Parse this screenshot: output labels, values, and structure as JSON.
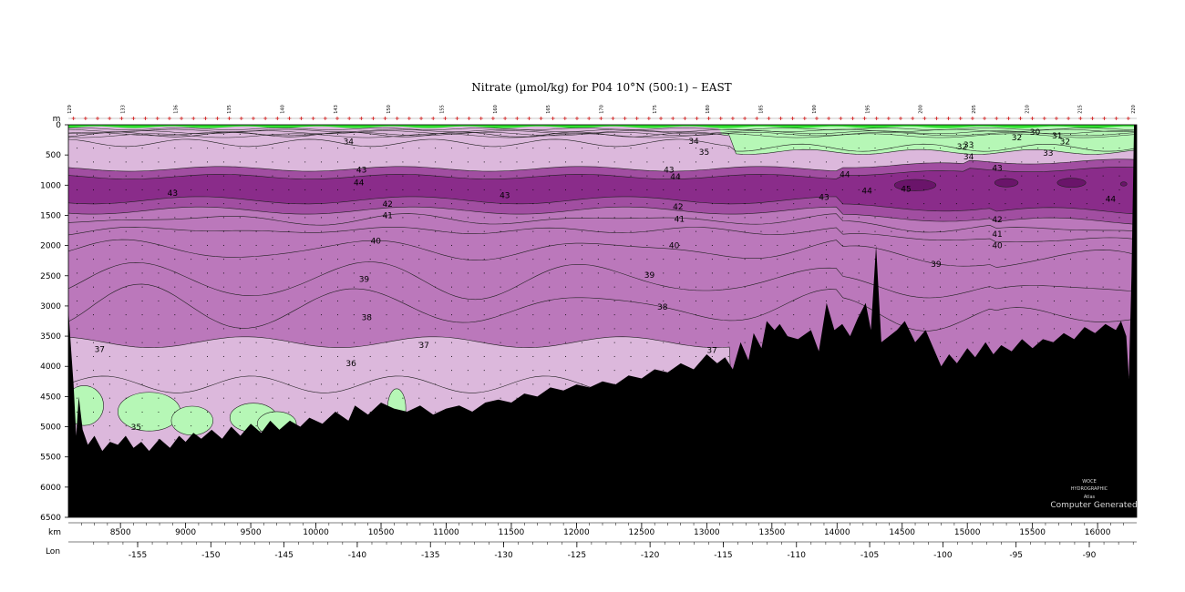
{
  "chart_data": {
    "type": "section_contour",
    "title": "Nitrate (µmol/kg) for P04 10°N (500:1) – EAST",
    "variable_unit": "µmol/kg",
    "y_unit_label": "m",
    "x_unit_label": "km",
    "secondary_x_label": "Lon",
    "y_axis": {
      "ylim": [
        0,
        6500
      ],
      "ticks": [
        0,
        500,
        1000,
        1500,
        2000,
        2500,
        3000,
        3500,
        4000,
        4500,
        5000,
        5500,
        6000,
        6500
      ],
      "reversed": true
    },
    "x_axis_km": {
      "xlim": [
        8100,
        16300
      ],
      "ticks": [
        8500,
        9000,
        9500,
        10000,
        10500,
        11000,
        11500,
        12000,
        12500,
        13000,
        13500,
        14000,
        14500,
        15000,
        15500,
        16000
      ]
    },
    "x_axis_lon": {
      "ticks": [
        -155,
        -150,
        -145,
        -140,
        -135,
        -130,
        -125,
        -120,
        -115,
        -110,
        -105,
        -100,
        -95,
        -90
      ]
    },
    "station_labels": [
      "129",
      "133",
      "136",
      "135",
      "140",
      "143",
      "150",
      "155",
      "160",
      "165",
      "170",
      "175",
      "180",
      "185",
      "190",
      "195",
      "200",
      "205",
      "210",
      "215",
      "220"
    ],
    "contour_levels": [
      30,
      31,
      32,
      33,
      34,
      35,
      36,
      37,
      38,
      39,
      40,
      41,
      42,
      43,
      44,
      45
    ],
    "contour_labels": [
      {
        "text": "34",
        "km": 10250,
        "depth": 280
      },
      {
        "text": "34",
        "km": 12900,
        "depth": 270
      },
      {
        "text": "35",
        "km": 12980,
        "depth": 450
      },
      {
        "text": "30",
        "km": 15520,
        "depth": 120
      },
      {
        "text": "31",
        "km": 15690,
        "depth": 180
      },
      {
        "text": "32",
        "km": 15380,
        "depth": 210
      },
      {
        "text": "32",
        "km": 15750,
        "depth": 280
      },
      {
        "text": "32",
        "km": 14960,
        "depth": 360
      },
      {
        "text": "33",
        "km": 15010,
        "depth": 330
      },
      {
        "text": "34",
        "km": 15010,
        "depth": 530
      },
      {
        "text": "33",
        "km": 15620,
        "depth": 470
      },
      {
        "text": "43",
        "km": 10350,
        "depth": 750
      },
      {
        "text": "43",
        "km": 12710,
        "depth": 750
      },
      {
        "text": "43",
        "km": 15230,
        "depth": 720
      },
      {
        "text": "44",
        "km": 10330,
        "depth": 960
      },
      {
        "text": "44",
        "km": 12760,
        "depth": 860
      },
      {
        "text": "44",
        "km": 14060,
        "depth": 820
      },
      {
        "text": "44",
        "km": 14230,
        "depth": 1090
      },
      {
        "text": "45",
        "km": 14530,
        "depth": 1060
      },
      {
        "text": "44",
        "km": 16100,
        "depth": 1230
      },
      {
        "text": "43",
        "km": 8900,
        "depth": 1130
      },
      {
        "text": "43",
        "km": 11450,
        "depth": 1170
      },
      {
        "text": "43",
        "km": 13900,
        "depth": 1200
      },
      {
        "text": "42",
        "km": 10550,
        "depth": 1310
      },
      {
        "text": "42",
        "km": 12780,
        "depth": 1360
      },
      {
        "text": "42",
        "km": 15230,
        "depth": 1570
      },
      {
        "text": "41",
        "km": 10550,
        "depth": 1500
      },
      {
        "text": "41",
        "km": 12790,
        "depth": 1560
      },
      {
        "text": "41",
        "km": 15230,
        "depth": 1810
      },
      {
        "text": "40",
        "km": 10460,
        "depth": 1920
      },
      {
        "text": "40",
        "km": 12750,
        "depth": 2000
      },
      {
        "text": "40",
        "km": 15230,
        "depth": 2000
      },
      {
        "text": "39",
        "km": 10370,
        "depth": 2560
      },
      {
        "text": "39",
        "km": 12560,
        "depth": 2490
      },
      {
        "text": "39",
        "km": 14760,
        "depth": 2310
      },
      {
        "text": "38",
        "km": 10390,
        "depth": 3190
      },
      {
        "text": "38",
        "km": 12660,
        "depth": 3020
      },
      {
        "text": "37",
        "km": 8340,
        "depth": 3720
      },
      {
        "text": "37",
        "km": 10830,
        "depth": 3650
      },
      {
        "text": "37",
        "km": 13040,
        "depth": 3730
      },
      {
        "text": "36",
        "km": 10270,
        "depth": 3950
      },
      {
        "text": "35",
        "km": 8620,
        "depth": 5010
      }
    ],
    "colors": {
      "surface": "#2ce02c",
      "low_green": "#b6f7b6",
      "light_lilac": "#dcb8dc",
      "mid_purple": "#bb78bb",
      "upper_purple": "#a14ea1",
      "core_purple": "#8a2c8a",
      "max_purple": "#6a146a",
      "bathymetry": "#000000"
    }
  },
  "watermark": {
    "line1": "WOCE",
    "line2": "HYDROGRAPHIC",
    "line3": "Atlas",
    "line4": "Computer Generated"
  }
}
